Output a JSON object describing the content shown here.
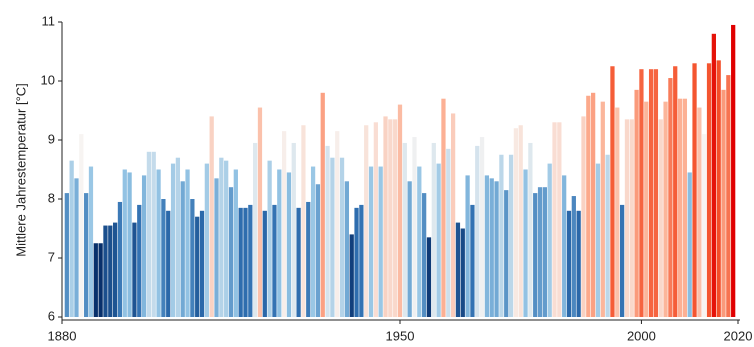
{
  "chart_data": {
    "type": "bar",
    "ylabel": "Mittlere Jahrestemperatur [°C]",
    "xlim": [
      1880,
      2020
    ],
    "xticks": [
      1880,
      1950,
      2000,
      2020
    ],
    "ylim": [
      6,
      11
    ],
    "yticks": [
      6,
      7,
      8,
      9,
      10,
      11
    ],
    "grid": false,
    "colormap": [
      "#08306b",
      "#2f6fb0",
      "#8fc1e3",
      "#f7f4f2",
      "#fcae91",
      "#f4502a",
      "#e00000"
    ],
    "x": [
      1881,
      1882,
      1883,
      1884,
      1885,
      1886,
      1887,
      1888,
      1889,
      1890,
      1891,
      1892,
      1893,
      1894,
      1895,
      1896,
      1897,
      1898,
      1899,
      1900,
      1901,
      1902,
      1903,
      1904,
      1905,
      1906,
      1907,
      1908,
      1909,
      1910,
      1911,
      1912,
      1913,
      1914,
      1915,
      1916,
      1917,
      1918,
      1919,
      1920,
      1921,
      1922,
      1923,
      1924,
      1925,
      1926,
      1927,
      1928,
      1929,
      1930,
      1931,
      1932,
      1933,
      1934,
      1935,
      1936,
      1937,
      1938,
      1939,
      1940,
      1941,
      1942,
      1943,
      1944,
      1945,
      1946,
      1947,
      1948,
      1949,
      1950,
      1951,
      1952,
      1953,
      1954,
      1955,
      1956,
      1957,
      1958,
      1959,
      1960,
      1961,
      1962,
      1963,
      1964,
      1965,
      1966,
      1967,
      1968,
      1969,
      1970,
      1971,
      1972,
      1973,
      1974,
      1975,
      1976,
      1977,
      1978,
      1979,
      1980,
      1981,
      1982,
      1983,
      1984,
      1985,
      1986,
      1987,
      1988,
      1989,
      1990,
      1991,
      1992,
      1993,
      1994,
      1995,
      1996,
      1997,
      1998,
      1999,
      2000,
      2001,
      2002,
      2003,
      2004,
      2005,
      2006,
      2007,
      2008,
      2009,
      2010,
      2011,
      2012,
      2013,
      2014,
      2015,
      2016,
      2017,
      2018,
      2019
    ],
    "values": [
      8.1,
      8.65,
      8.35,
      9.1,
      8.1,
      8.55,
      7.25,
      7.25,
      7.55,
      7.55,
      7.6,
      7.95,
      8.5,
      8.45,
      7.6,
      7.9,
      8.4,
      8.8,
      8.8,
      8.5,
      8.0,
      7.8,
      8.6,
      8.7,
      8.3,
      8.5,
      8.0,
      7.7,
      7.8,
      8.6,
      9.4,
      8.35,
      8.7,
      8.65,
      8.2,
      8.5,
      7.85,
      7.85,
      7.9,
      8.95,
      9.55,
      7.8,
      8.65,
      7.9,
      8.5,
      9.15,
      8.45,
      8.95,
      7.85,
      9.25,
      7.95,
      8.55,
      8.25,
      9.8,
      8.9,
      8.7,
      9.15,
      8.7,
      8.3,
      7.4,
      7.85,
      7.9,
      9.25,
      8.55,
      9.3,
      8.55,
      9.4,
      9.35,
      9.35,
      9.6,
      8.95,
      8.3,
      9.05,
      8.55,
      8.1,
      7.35,
      8.95,
      8.6,
      9.7,
      8.85,
      9.45,
      7.6,
      7.5,
      8.4,
      7.9,
      8.9,
      9.05,
      8.4,
      8.35,
      8.3,
      8.75,
      8.15,
      8.75,
      9.2,
      9.25,
      8.5,
      8.95,
      8.1,
      8.2,
      8.2,
      8.6,
      9.3,
      9.3,
      8.4,
      7.8,
      8.05,
      7.8,
      9.4,
      9.75,
      9.8,
      8.6,
      9.65,
      8.75,
      10.25,
      9.55,
      7.9,
      9.35,
      9.35,
      9.85,
      10.2,
      9.65,
      10.2,
      10.2,
      9.35,
      9.65,
      10.05,
      10.25,
      9.7,
      9.7,
      8.45,
      10.3,
      9.55,
      9.1,
      10.3,
      10.8,
      10.35,
      9.85,
      10.1,
      10.95
    ]
  }
}
